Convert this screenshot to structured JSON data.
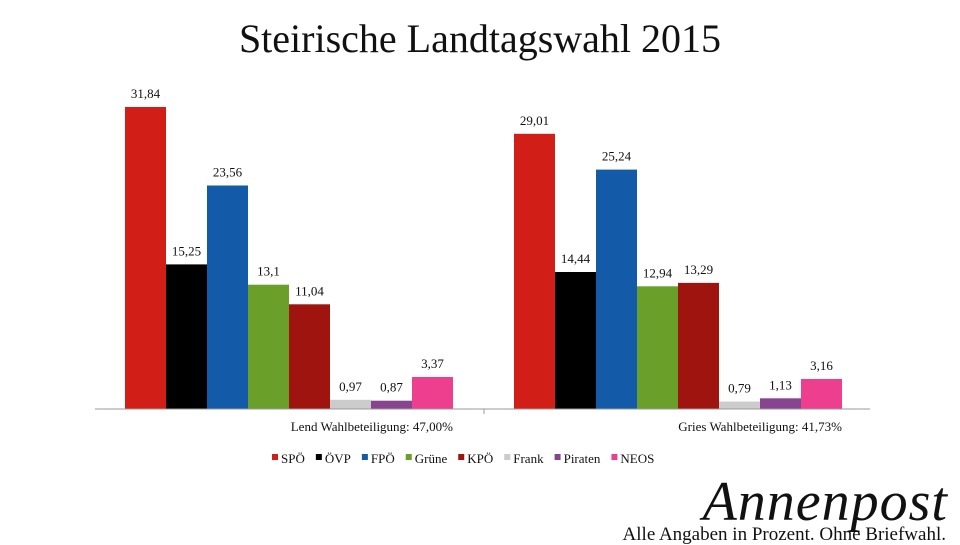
{
  "chart_data": {
    "type": "bar",
    "title": "Steirische Landtagswahl 2015",
    "groups": [
      "Lend Wahlbeteiligung: 47,00%",
      "Gries Wahlbeteiligung: 41,73%"
    ],
    "series": [
      {
        "name": "SPÖ",
        "color": "#d11f18",
        "values": [
          31.84,
          29.01
        ],
        "labels": [
          "31,84",
          "29,01"
        ]
      },
      {
        "name": "ÖVP",
        "color": "#000000",
        "values": [
          15.25,
          14.44
        ],
        "labels": [
          "15,25",
          "14,44"
        ]
      },
      {
        "name": "FPÖ",
        "color": "#135aa8",
        "values": [
          23.56,
          25.24
        ],
        "labels": [
          "23,56",
          "25,24"
        ]
      },
      {
        "name": "Grüne",
        "color": "#6a9f2a",
        "values": [
          13.1,
          12.94
        ],
        "labels": [
          "13,1",
          "12,94"
        ]
      },
      {
        "name": "KPÖ",
        "color": "#a01410",
        "values": [
          11.04,
          13.29
        ],
        "labels": [
          "11,04",
          "13,29"
        ]
      },
      {
        "name": "Frank",
        "color": "#cccccc",
        "values": [
          0.97,
          0.79
        ],
        "labels": [
          "0,97",
          "0,79"
        ]
      },
      {
        "name": "Piraten",
        "color": "#87458f",
        "values": [
          0.87,
          1.13
        ],
        "labels": [
          "0,87",
          "1,13"
        ]
      },
      {
        "name": "NEOS",
        "color": "#ee3f8f",
        "values": [
          3.37,
          3.16
        ],
        "labels": [
          "3,37",
          "3,16"
        ]
      }
    ],
    "ylim": [
      0,
      32
    ],
    "legend": "bottom",
    "grid": false
  },
  "branding": {
    "logo": "Annenpost",
    "footnote": "Alle Angaben in Prozent. Ohne  Briefwahl."
  }
}
